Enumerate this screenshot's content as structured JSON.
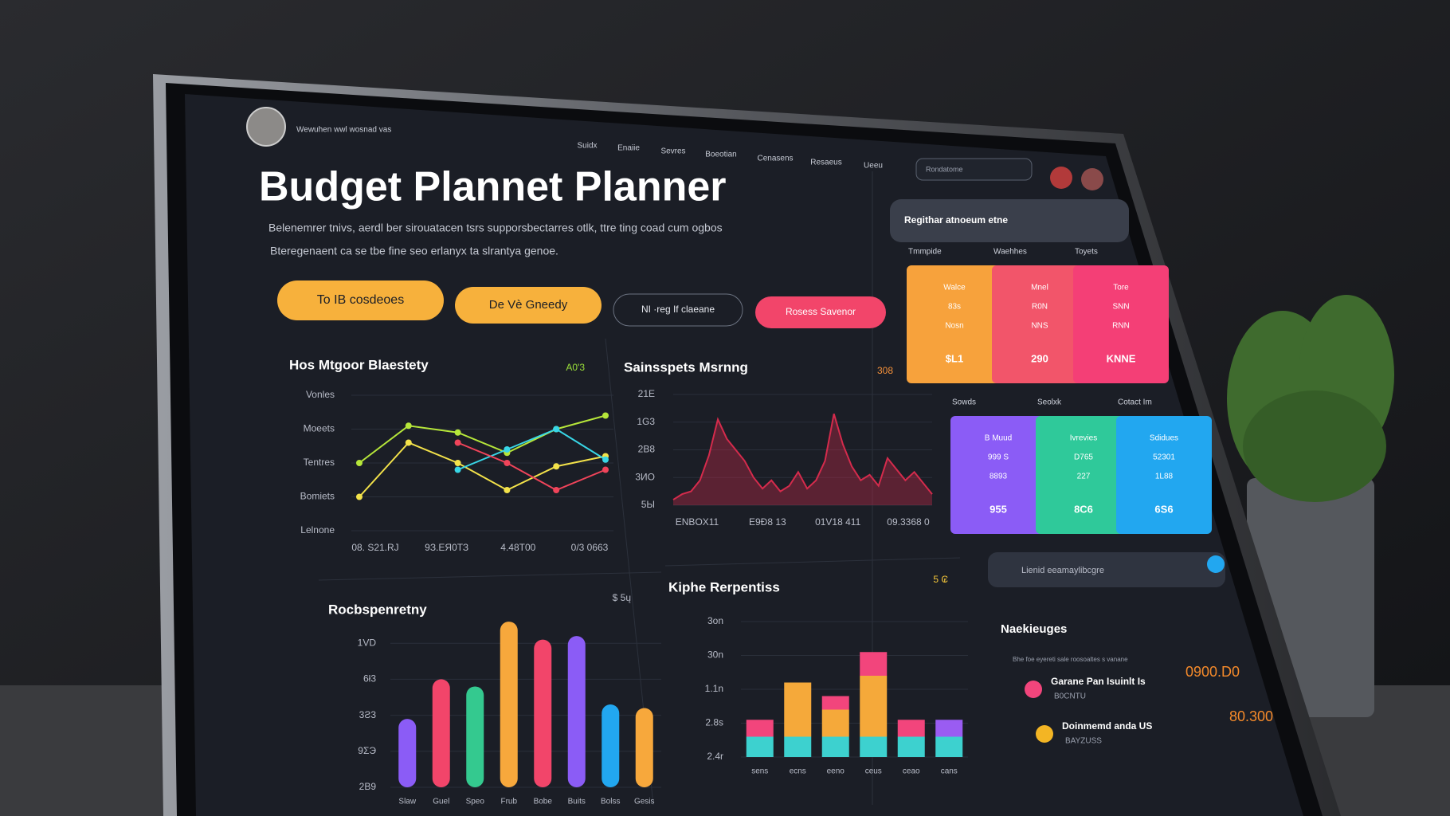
{
  "header": {
    "user": "Wewuhen wwl wosnad vas",
    "nav": [
      "Suidx",
      "Enaiie",
      "Sevres",
      "Boeotian",
      "Cenasens",
      "Resaeus",
      "Ueeu"
    ],
    "search": "Rondatome"
  },
  "title": "Budget Plannet Planner",
  "subtitle": [
    "Belenemrer tnivs, aerdl ber sirouatacen tsrs supporsbectarres otlk, ttre ting coad cum ogbos",
    "Bteregenaent ca se tbe fine seo erlanyx ta slrantya genoe."
  ],
  "buttons": [
    "To IB cosdeoes",
    "De Vè Gneedy",
    "NI ·reg If claeane",
    "Rosess Savenor"
  ],
  "panels": [
    {
      "type": "line",
      "title": "Hos Mtgoor Blaestety",
      "tag": "A0'3",
      "tag_color": "#9be03a",
      "ylim": [
        0,
        4
      ],
      "yticks": [
        {
          "value": 4,
          "label": "Vonles"
        },
        {
          "value": 3,
          "label": "Moeets"
        },
        {
          "value": 2,
          "label": "Tentres"
        },
        {
          "value": 1,
          "label": "Bomiets"
        },
        {
          "value": 0,
          "label": "Lelnone"
        }
      ],
      "xlabels": [
        "08. S21.RJ",
        "9З.ЕЯ0ТЗ",
        "4.48Т00",
        "0/3 0663"
      ],
      "series": [
        {
          "color": "#b6e63a",
          "values": [
            2.0,
            3.1,
            2.9,
            2.3,
            3.0,
            3.4
          ]
        },
        {
          "color": "#f3e24a",
          "values": [
            1.0,
            2.6,
            2.0,
            1.2,
            1.9,
            2.2
          ]
        },
        {
          "color": "#38d6e6",
          "values": [
            null,
            null,
            1.8,
            2.4,
            3.0,
            2.1
          ]
        },
        {
          "color": "#f0445a",
          "values": [
            null,
            null,
            2.6,
            2.0,
            1.2,
            1.8
          ]
        }
      ]
    },
    {
      "type": "area",
      "title": "Sainsspets Msrnng",
      "tag": "308",
      "tag_color": "#f5913a",
      "ylim": [
        0,
        4
      ],
      "yticks": [
        {
          "value": 4,
          "label": "21E"
        },
        {
          "value": 3,
          "label": "1G3"
        },
        {
          "value": 2,
          "label": "2B8"
        },
        {
          "value": 1,
          "label": "3ИО"
        },
        {
          "value": 0,
          "label": "5Ы"
        }
      ],
      "xlabels": [
        "ЕNBOX11",
        "E9Ð8 13",
        "01V18 411",
        "09.3368 0"
      ],
      "series": [
        {
          "color": "#d42b4c",
          "values": [
            0.2,
            0.4,
            0.5,
            0.9,
            1.8,
            3.1,
            2.4,
            2.0,
            1.6,
            1.0,
            0.6,
            0.9,
            0.5,
            0.7,
            1.2,
            0.6,
            0.9,
            1.6,
            3.3,
            2.2,
            1.4,
            0.9,
            1.1,
            0.7,
            1.7,
            1.3,
            0.9,
            1.2,
            0.8,
            0.4
          ]
        }
      ]
    },
    {
      "type": "bar",
      "title": "Rocbspenretny",
      "tag": "$ 5ų",
      "tag_color": "#b8bcc8",
      "ylim": [
        0,
        5
      ],
      "yticks": [
        {
          "value": 4,
          "label": "1VD"
        },
        {
          "value": 3,
          "label": "6ł3"
        },
        {
          "value": 2,
          "label": "3Ƨ3"
        },
        {
          "value": 1,
          "label": "9ΣЭ"
        },
        {
          "value": 0,
          "label": "2B9"
        }
      ],
      "categories": [
        "Slaw",
        "Guel",
        "Speo",
        "Frub",
        "Bobe",
        "Buits",
        "Bolss",
        "Gesis"
      ],
      "colors": [
        "#8b5cf6",
        "#f2456a",
        "#34c98f",
        "#f7a83c",
        "#f2456a",
        "#8b5cf6",
        "#22a7f0",
        "#f7a83c"
      ],
      "series": [
        {
          "values": [
            1.9,
            3.0,
            2.8,
            4.6,
            4.1,
            4.2,
            2.3,
            2.2
          ]
        }
      ]
    },
    {
      "type": "stacked",
      "title": "Kiphe Rerpentiss",
      "tag": "5 ₢",
      "tag_color": "#f3c53a",
      "ylim": [
        0,
        4
      ],
      "yticks": [
        {
          "value": 4,
          "label": "3on"
        },
        {
          "value": 3,
          "label": "30n"
        },
        {
          "value": 2,
          "label": "1.1n"
        },
        {
          "value": 1,
          "label": "2.8s"
        },
        {
          "value": 0,
          "label": "2.4r"
        }
      ],
      "categories": [
        "sens",
        "ecns",
        "eeno",
        "ceus",
        "ceao",
        "cans"
      ],
      "series": [
        {
          "color": "#3dd1cf",
          "values": [
            0.6,
            0.6,
            0.6,
            0.6,
            0.6,
            0.6
          ]
        },
        {
          "color": "#f5a93a",
          "values": [
            0,
            1.6,
            0.8,
            1.8,
            0,
            0
          ]
        },
        {
          "color": "#f2457c",
          "values": [
            0.5,
            0,
            0.4,
            0.7,
            0.5,
            0
          ]
        },
        {
          "color": "#9a5cf2",
          "values": [
            0,
            0,
            0,
            0,
            0,
            0.5
          ]
        }
      ]
    }
  ],
  "side": {
    "banner": "Regithar atnoeum etne",
    "groups": [
      {
        "labels": [
          "Tmmpide",
          "Waehhes",
          "Toyets"
        ],
        "cards": [
          {
            "color": "#f7a23c",
            "lines": [
              "Walce",
              "83s",
              "Nosn",
              "$L1"
            ]
          },
          {
            "color": "#f2556a",
            "lines": [
              "Mnel",
              "R0N",
              "NNS",
              "290"
            ]
          },
          {
            "color": "#f43f76",
            "lines": [
              "Tore",
              "SNN",
              "RNN",
              "KNNE"
            ]
          }
        ]
      },
      {
        "labels": [
          "Sowds",
          "Seolxk",
          "Cotact Im"
        ],
        "cards": [
          {
            "color": "#8b5cf6",
            "lines": [
              "B Muud",
              "999 S",
              "8893",
              "955"
            ]
          },
          {
            "color": "#2fc99a",
            "lines": [
              "Ivrevies",
              "D765",
              "227",
              "8C6"
            ]
          },
          {
            "color": "#22a7f0",
            "lines": [
              "Sdidues",
              "52301",
              "1L88",
              "6S6"
            ]
          }
        ]
      }
    ],
    "search": "Lienid eeamaylibcgre",
    "list_title": "Naekieuges",
    "list_note": "Bhe foe eyereti sale roosoaltes s vanane",
    "items": [
      {
        "color": "#f2457c",
        "name": "Garane Pan Isuinlt Is",
        "sub": "B0CNTU",
        "amount": "0900.D0"
      },
      {
        "color": "#f3b524",
        "name": "Doinmemd anda US",
        "sub": "BAYZUSS",
        "amount": "80.300"
      }
    ]
  }
}
